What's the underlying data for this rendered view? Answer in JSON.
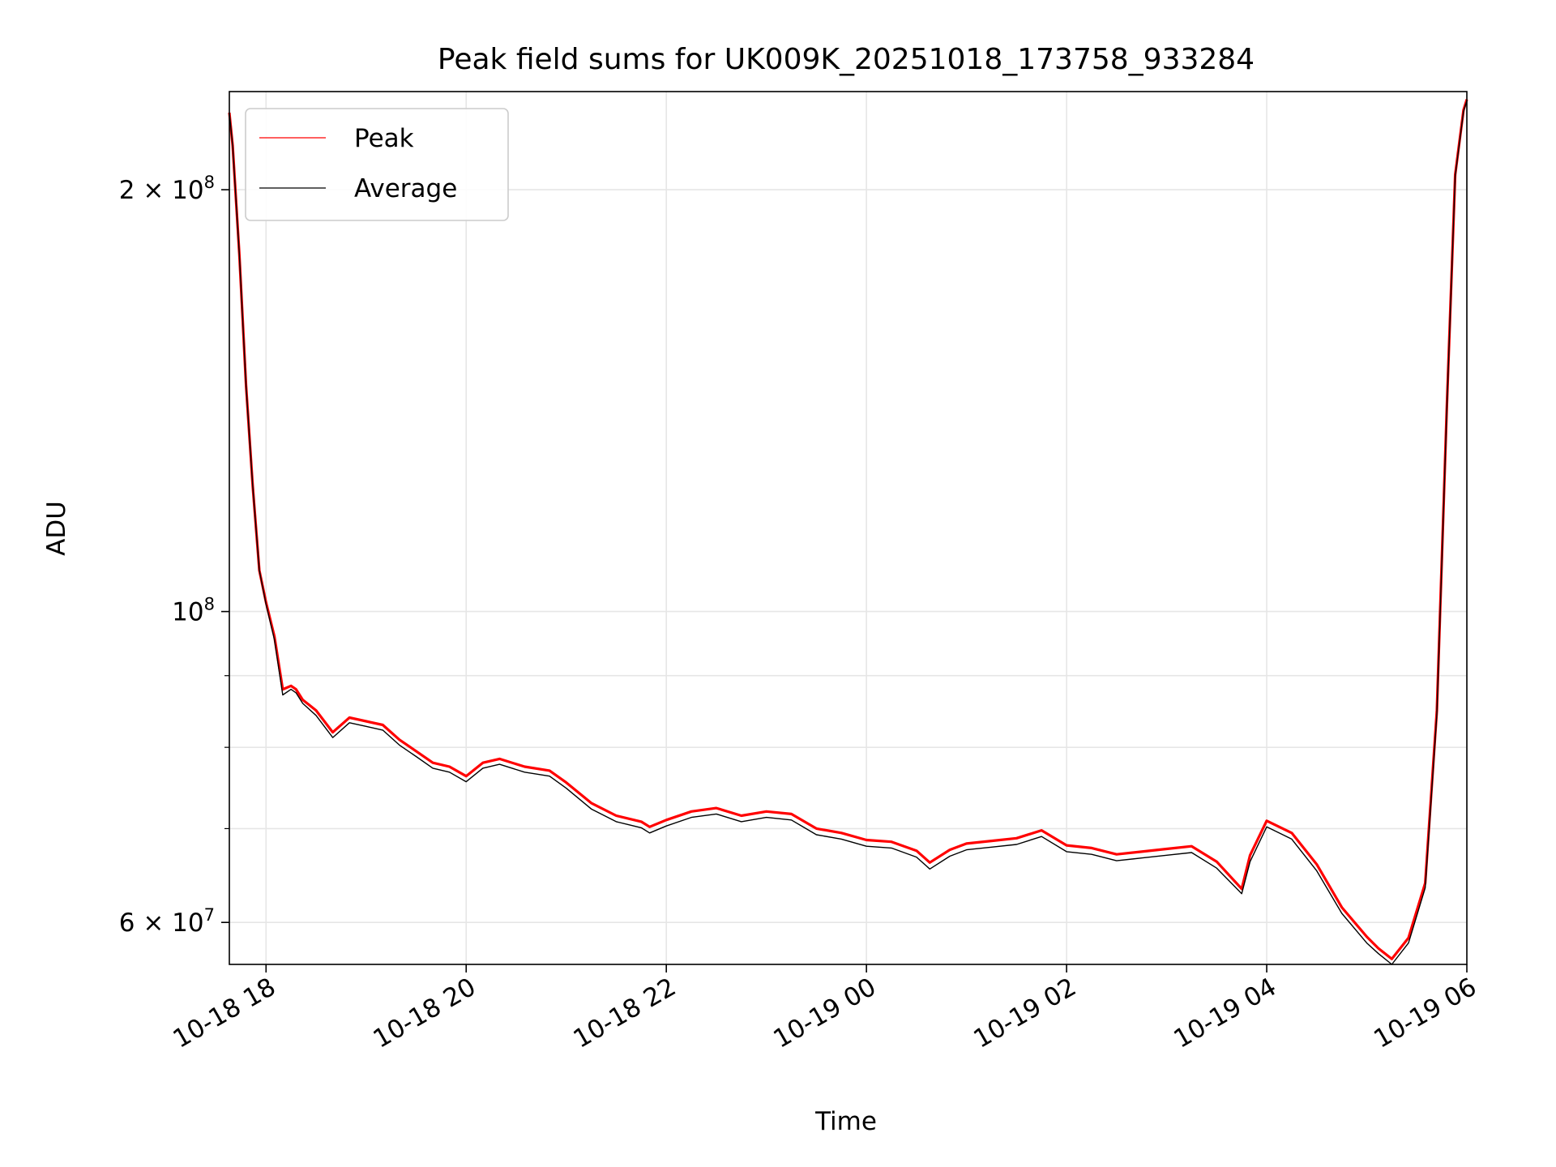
{
  "chart_data": {
    "type": "line",
    "title": "Peak field sums for UK009K_20251018_173758_933284",
    "xlabel": "Time",
    "ylabel": "ADU",
    "yscale": "log",
    "xlim": [
      "2025-10-18 17:38",
      "2025-10-19 06:00"
    ],
    "ylim": [
      56000000,
      235000000
    ],
    "x_tick_labels": [
      "10-18 18",
      "10-18 20",
      "10-18 22",
      "10-19 00",
      "10-19 02",
      "10-19 04",
      "10-19 06"
    ],
    "x_ticks": [
      "2025-10-18 18:00",
      "2025-10-18 20:00",
      "2025-10-18 22:00",
      "2025-10-19 00:00",
      "2025-10-19 02:00",
      "2025-10-19 04:00",
      "2025-10-19 06:00"
    ],
    "y_major_ticks": [
      {
        "value": 60000000,
        "mantissa": "6",
        "times": true,
        "exp": "7"
      },
      {
        "value": 100000000,
        "mantissa": "",
        "times": false,
        "exp": "8"
      },
      {
        "value": 200000000,
        "mantissa": "2",
        "times": true,
        "exp": "8"
      }
    ],
    "y_minor_ticks": [
      70000000,
      80000000,
      90000000
    ],
    "grid": true,
    "legend_position": "top-left",
    "series": [
      {
        "name": "Peak",
        "color": "#ff0000",
        "x": [
          "2025-10-18 17:38",
          "2025-10-18 17:40",
          "2025-10-18 17:44",
          "2025-10-18 17:48",
          "2025-10-18 17:52",
          "2025-10-18 17:56",
          "2025-10-18 18:00",
          "2025-10-18 18:05",
          "2025-10-18 18:10",
          "2025-10-18 18:15",
          "2025-10-18 18:18",
          "2025-10-18 18:22",
          "2025-10-18 18:30",
          "2025-10-18 18:40",
          "2025-10-18 18:50",
          "2025-10-18 19:00",
          "2025-10-18 19:10",
          "2025-10-18 19:20",
          "2025-10-18 19:30",
          "2025-10-18 19:40",
          "2025-10-18 19:50",
          "2025-10-18 20:00",
          "2025-10-18 20:10",
          "2025-10-18 20:20",
          "2025-10-18 20:35",
          "2025-10-18 20:50",
          "2025-10-18 21:00",
          "2025-10-18 21:15",
          "2025-10-18 21:30",
          "2025-10-18 21:45",
          "2025-10-18 21:50",
          "2025-10-18 22:00",
          "2025-10-18 22:15",
          "2025-10-18 22:30",
          "2025-10-18 22:45",
          "2025-10-18 23:00",
          "2025-10-18 23:15",
          "2025-10-18 23:30",
          "2025-10-18 23:45",
          "2025-10-19 00:00",
          "2025-10-19 00:15",
          "2025-10-19 00:30",
          "2025-10-19 00:38",
          "2025-10-19 00:50",
          "2025-10-19 01:00",
          "2025-10-19 01:15",
          "2025-10-19 01:30",
          "2025-10-19 01:45",
          "2025-10-19 02:00",
          "2025-10-19 02:15",
          "2025-10-19 02:30",
          "2025-10-19 02:45",
          "2025-10-19 03:00",
          "2025-10-19 03:15",
          "2025-10-19 03:30",
          "2025-10-19 03:45",
          "2025-10-19 03:50",
          "2025-10-19 04:00",
          "2025-10-19 04:15",
          "2025-10-19 04:30",
          "2025-10-19 04:45",
          "2025-10-19 05:00",
          "2025-10-19 05:07",
          "2025-10-19 05:15",
          "2025-10-19 05:25",
          "2025-10-19 05:35",
          "2025-10-19 05:42",
          "2025-10-19 05:48",
          "2025-10-19 05:53",
          "2025-10-19 05:58",
          "2025-10-19 06:00"
        ],
        "y": [
          227000000,
          215000000,
          180000000,
          145000000,
          123000000,
          107000000,
          101500000,
          96000000,
          88000000,
          88500000,
          88000000,
          86500000,
          85000000,
          82000000,
          84000000,
          83500000,
          83000000,
          81000000,
          79500000,
          78000000,
          77500000,
          76300000,
          78000000,
          78500000,
          77500000,
          77000000,
          75500000,
          73000000,
          71500000,
          70800000,
          70200000,
          71000000,
          72000000,
          72400000,
          71500000,
          72000000,
          71700000,
          70000000,
          69500000,
          68700000,
          68500000,
          67500000,
          66200000,
          67600000,
          68300000,
          68600000,
          68900000,
          69800000,
          68100000,
          67800000,
          67100000,
          67400000,
          67700000,
          68000000,
          66300000,
          63400000,
          67000000,
          70900000,
          69500000,
          66000000,
          61500000,
          58600000,
          57500000,
          56500000,
          58500000,
          64000000,
          85000000,
          140000000,
          205000000,
          228000000,
          232000000
        ]
      },
      {
        "name": "Average",
        "color": "#000000",
        "x": [
          "2025-10-18 17:38",
          "2025-10-18 17:40",
          "2025-10-18 17:44",
          "2025-10-18 17:48",
          "2025-10-18 17:52",
          "2025-10-18 17:56",
          "2025-10-18 18:00",
          "2025-10-18 18:05",
          "2025-10-18 18:10",
          "2025-10-18 18:15",
          "2025-10-18 18:18",
          "2025-10-18 18:22",
          "2025-10-18 18:30",
          "2025-10-18 18:40",
          "2025-10-18 18:50",
          "2025-10-18 19:00",
          "2025-10-18 19:10",
          "2025-10-18 19:20",
          "2025-10-18 19:30",
          "2025-10-18 19:40",
          "2025-10-18 19:50",
          "2025-10-18 20:00",
          "2025-10-18 20:10",
          "2025-10-18 20:20",
          "2025-10-18 20:35",
          "2025-10-18 20:50",
          "2025-10-18 21:00",
          "2025-10-18 21:15",
          "2025-10-18 21:30",
          "2025-10-18 21:45",
          "2025-10-18 21:50",
          "2025-10-18 22:00",
          "2025-10-18 22:15",
          "2025-10-18 22:30",
          "2025-10-18 22:45",
          "2025-10-18 23:00",
          "2025-10-18 23:15",
          "2025-10-18 23:30",
          "2025-10-18 23:45",
          "2025-10-19 00:00",
          "2025-10-19 00:15",
          "2025-10-19 00:30",
          "2025-10-19 00:38",
          "2025-10-19 00:50",
          "2025-10-19 01:00",
          "2025-10-19 01:15",
          "2025-10-19 01:30",
          "2025-10-19 01:45",
          "2025-10-19 02:00",
          "2025-10-19 02:15",
          "2025-10-19 02:30",
          "2025-10-19 02:45",
          "2025-10-19 03:00",
          "2025-10-19 03:15",
          "2025-10-19 03:30",
          "2025-10-19 03:45",
          "2025-10-19 03:50",
          "2025-10-19 04:00",
          "2025-10-19 04:15",
          "2025-10-19 04:30",
          "2025-10-19 04:45",
          "2025-10-19 05:00",
          "2025-10-19 05:07",
          "2025-10-19 05:15",
          "2025-10-19 05:25",
          "2025-10-19 05:35",
          "2025-10-19 05:42",
          "2025-10-19 05:48",
          "2025-10-19 05:53",
          "2025-10-19 05:58",
          "2025-10-19 06:00"
        ],
        "y": [
          227000000,
          215000000,
          180000000,
          145000000,
          123000000,
          107000000,
          101200000,
          95500000,
          87200000,
          88000000,
          87500000,
          86000000,
          84300000,
          81300000,
          83300000,
          82800000,
          82300000,
          80300000,
          78800000,
          77300000,
          76800000,
          75600000,
          77300000,
          77800000,
          76800000,
          76300000,
          74800000,
          72300000,
          70800000,
          70100000,
          69500000,
          70300000,
          71300000,
          71700000,
          70800000,
          71300000,
          71000000,
          69300000,
          68800000,
          68000000,
          67800000,
          66800000,
          65500000,
          66900000,
          67600000,
          67900000,
          68200000,
          69100000,
          67400000,
          67100000,
          66400000,
          66700000,
          67000000,
          67300000,
          65600000,
          62900000,
          66300000,
          70200000,
          68800000,
          65300000,
          60900000,
          58000000,
          57000000,
          56000000,
          58000000,
          63500000,
          84500000,
          139500000,
          204500000,
          227500000,
          231500000
        ]
      }
    ]
  }
}
